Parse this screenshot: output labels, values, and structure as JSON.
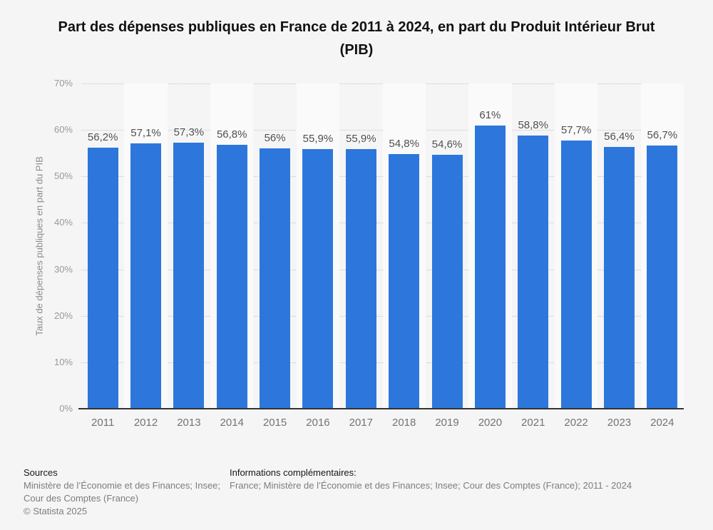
{
  "chart_data": {
    "type": "bar",
    "title": "Part des dépenses publiques en France de 2011 à 2024, en part du Produit Intérieur Brut (PIB)",
    "categories": [
      "2011",
      "2012",
      "2013",
      "2014",
      "2015",
      "2016",
      "2017",
      "2018",
      "2019",
      "2020",
      "2021",
      "2022",
      "2023",
      "2024"
    ],
    "values": [
      56.2,
      57.1,
      57.3,
      56.8,
      56,
      55.9,
      55.9,
      54.8,
      54.6,
      61,
      58.8,
      57.7,
      56.4,
      56.7
    ],
    "value_labels": [
      "56,2%",
      "57,1%",
      "57,3%",
      "56,8%",
      "56%",
      "55,9%",
      "55,9%",
      "54,8%",
      "54,6%",
      "61%",
      "58,8%",
      "57,7%",
      "56,4%",
      "56,7%"
    ],
    "xlabel": "",
    "ylabel": "Taux de dépenses publiques en part du PIB",
    "ylim": [
      0,
      70
    ],
    "y_tick_values": [
      0,
      10,
      20,
      30,
      40,
      50,
      60,
      70
    ],
    "y_tick_labels": [
      "0%",
      "10%",
      "20%",
      "30%",
      "40%",
      "50%",
      "60%",
      "70%"
    ],
    "grid": "horizontal-dotted",
    "legend": "none",
    "colors": {
      "bar": "#2d77dc",
      "band_alt": "#fafafa",
      "background": "#f5f5f5",
      "axis_line": "#333333",
      "value_label": "#4d4d4d"
    }
  },
  "footer": {
    "sources_heading": "Sources",
    "sources_line1": "Ministère de l’Économie et des Finances; Insee;",
    "sources_line2": "Cour des Comptes (France)",
    "copyright": "© Statista 2025",
    "info_heading": "Informations complémentaires:",
    "info_body": "France; Ministère de l’Économie et des Finances; Insee; Cour des Comptes (France); 2011 - 2024"
  }
}
